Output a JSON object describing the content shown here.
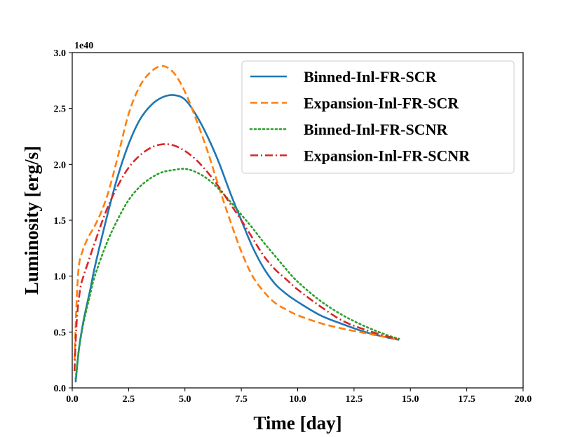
{
  "chart_data": {
    "type": "line",
    "title": "",
    "xlabel": "Time [day]",
    "ylabel": "Luminosity [erg/s]",
    "y_offset_text": "1e40",
    "xlim": [
      0,
      20
    ],
    "ylim": [
      0,
      3
    ],
    "x_ticks": [
      0,
      2.5,
      5,
      7.5,
      10,
      12.5,
      15,
      17.5,
      20
    ],
    "x_tick_labels": [
      "0.0",
      "2.5",
      "5.0",
      "7.5",
      "10.0",
      "12.5",
      "15.0",
      "17.5",
      "20.0"
    ],
    "y_ticks": [
      0,
      0.5,
      1,
      1.5,
      2,
      2.5,
      3
    ],
    "y_tick_labels": [
      "0.0",
      "0.5",
      "1.0",
      "1.5",
      "2.0",
      "2.5",
      "3.0"
    ],
    "grid": false,
    "legend_position": "top-right",
    "series": [
      {
        "name": "Binned-Inl-FR-SCR",
        "color": "#1f77b4",
        "dash": "solid",
        "x": [
          0.15,
          0.3,
          0.5,
          0.8,
          1.0,
          1.5,
          2.0,
          2.5,
          3.0,
          3.5,
          4.0,
          4.5,
          5.0,
          5.5,
          6.0,
          6.5,
          7.0,
          7.5,
          8.0,
          8.5,
          9.0,
          9.5,
          10.0,
          11.0,
          12.0,
          13.0,
          14.0,
          14.5
        ],
        "values": [
          0.05,
          0.35,
          0.6,
          0.88,
          1.08,
          1.5,
          1.88,
          2.18,
          2.4,
          2.53,
          2.6,
          2.62,
          2.58,
          2.44,
          2.25,
          2.02,
          1.75,
          1.5,
          1.26,
          1.07,
          0.93,
          0.84,
          0.77,
          0.65,
          0.57,
          0.5,
          0.45,
          0.43
        ]
      },
      {
        "name": "Expansion-Inl-FR-SCR",
        "color": "#ff7f0e",
        "dash": "dashed",
        "x": [
          0.1,
          0.2,
          0.3,
          0.45,
          0.6,
          0.8,
          1.0,
          1.3,
          1.6,
          2.0,
          2.5,
          3.0,
          3.5,
          4.0,
          4.5,
          5.0,
          5.5,
          6.0,
          6.5,
          7.0,
          7.5,
          8.0,
          8.5,
          9.0,
          9.5,
          10.0,
          11.0,
          12.0,
          13.0,
          14.0,
          14.5
        ],
        "values": [
          0.25,
          0.8,
          1.1,
          1.22,
          1.3,
          1.38,
          1.45,
          1.58,
          1.75,
          2.05,
          2.45,
          2.7,
          2.83,
          2.88,
          2.82,
          2.65,
          2.4,
          2.12,
          1.8,
          1.5,
          1.22,
          1.0,
          0.86,
          0.76,
          0.7,
          0.65,
          0.58,
          0.53,
          0.49,
          0.45,
          0.43
        ]
      },
      {
        "name": "Binned-Inl-FR-SCNR",
        "color": "#2ca02c",
        "dash": "dotted",
        "x": [
          0.15,
          0.3,
          0.5,
          0.8,
          1.0,
          1.5,
          2.0,
          2.5,
          3.0,
          3.5,
          4.0,
          4.5,
          5.0,
          5.5,
          6.0,
          6.5,
          7.0,
          7.5,
          8.0,
          8.5,
          9.0,
          9.5,
          10.0,
          11.0,
          12.0,
          13.0,
          14.0,
          14.5
        ],
        "values": [
          0.08,
          0.35,
          0.58,
          0.84,
          1.0,
          1.28,
          1.5,
          1.68,
          1.8,
          1.88,
          1.93,
          1.95,
          1.96,
          1.93,
          1.87,
          1.78,
          1.67,
          1.55,
          1.43,
          1.3,
          1.18,
          1.06,
          0.95,
          0.78,
          0.65,
          0.55,
          0.47,
          0.44
        ]
      },
      {
        "name": "Expansion-Inl-FR-SCNR",
        "color": "#d62728",
        "dash": "dashdot",
        "x": [
          0.1,
          0.2,
          0.35,
          0.5,
          0.7,
          1.0,
          1.5,
          2.0,
          2.5,
          3.0,
          3.5,
          4.0,
          4.5,
          5.0,
          5.5,
          6.0,
          6.5,
          7.0,
          7.5,
          8.0,
          8.5,
          9.0,
          9.5,
          10.0,
          11.0,
          12.0,
          13.0,
          14.0,
          14.5
        ],
        "values": [
          0.15,
          0.6,
          0.88,
          1.0,
          1.12,
          1.3,
          1.58,
          1.8,
          1.97,
          2.08,
          2.15,
          2.18,
          2.17,
          2.12,
          2.04,
          1.93,
          1.8,
          1.65,
          1.5,
          1.34,
          1.18,
          1.06,
          0.97,
          0.88,
          0.73,
          0.6,
          0.52,
          0.46,
          0.43
        ]
      }
    ]
  }
}
